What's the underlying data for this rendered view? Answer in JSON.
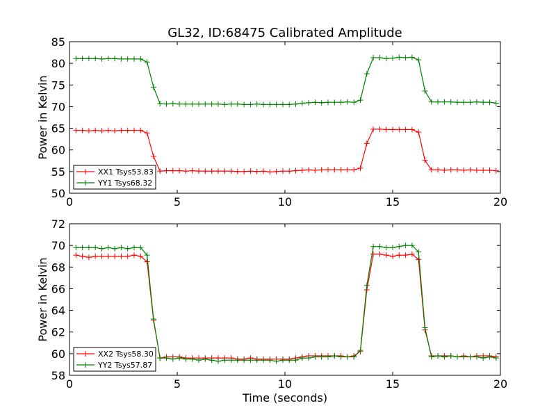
{
  "chart_data": [
    {
      "type": "line",
      "title": "GL32, ID:68475 Calibrated Amplitude",
      "xlabel": "",
      "ylabel": "Power in Kelvin",
      "xlim": [
        0,
        20
      ],
      "ylim": [
        50,
        85
      ],
      "xticks": [
        "0",
        "5",
        "10",
        "15",
        "20"
      ],
      "yticks": [
        "50",
        "55",
        "60",
        "65",
        "70",
        "75",
        "80",
        "85"
      ],
      "legend_position": "lower-left",
      "grid": false,
      "x": [
        0.3,
        0.6,
        0.9,
        1.2,
        1.5,
        1.8,
        2.1,
        2.4,
        2.7,
        3.0,
        3.3,
        3.6,
        3.9,
        4.2,
        4.5,
        4.8,
        5.1,
        5.4,
        5.7,
        6.0,
        6.3,
        6.6,
        6.9,
        7.2,
        7.5,
        7.8,
        8.1,
        8.4,
        8.7,
        9.0,
        9.3,
        9.6,
        9.9,
        10.2,
        10.5,
        10.8,
        11.1,
        11.4,
        11.7,
        12.0,
        12.3,
        12.6,
        12.9,
        13.2,
        13.5,
        13.8,
        14.1,
        14.4,
        14.7,
        15.0,
        15.3,
        15.6,
        15.9,
        16.2,
        16.5,
        16.8,
        17.1,
        17.4,
        17.7,
        18.0,
        18.3,
        18.6,
        18.9,
        19.2,
        19.5,
        19.8
      ],
      "series": [
        {
          "name": "XX1 Tsys53.83",
          "color": "#ff0000",
          "values": [
            64.5,
            64.5,
            64.4,
            64.5,
            64.4,
            64.5,
            64.4,
            64.5,
            64.5,
            64.5,
            64.5,
            63.9,
            58.5,
            55.1,
            55.2,
            55.2,
            55.2,
            55.1,
            55.2,
            55.1,
            55.1,
            55.1,
            55.1,
            55.1,
            55.1,
            55.0,
            55.0,
            55.1,
            55.0,
            55.1,
            54.9,
            55.0,
            55.1,
            55.1,
            55.2,
            55.3,
            55.4,
            55.3,
            55.4,
            55.4,
            55.4,
            55.4,
            55.4,
            55.4,
            55.8,
            61.5,
            64.8,
            64.8,
            64.7,
            64.7,
            64.7,
            64.7,
            64.7,
            64.1,
            57.6,
            55.4,
            55.4,
            55.3,
            55.4,
            55.4,
            55.3,
            55.4,
            55.3,
            55.3,
            55.3,
            55.2
          ]
        },
        {
          "name": "YY1 Tsys68.32",
          "color": "#008000",
          "values": [
            81.1,
            81.1,
            81.1,
            81.1,
            81.0,
            81.1,
            81.1,
            81.0,
            81.0,
            81.0,
            81.0,
            80.3,
            74.5,
            70.7,
            70.6,
            70.7,
            70.6,
            70.6,
            70.6,
            70.6,
            70.6,
            70.6,
            70.6,
            70.5,
            70.6,
            70.6,
            70.5,
            70.5,
            70.6,
            70.5,
            70.5,
            70.5,
            70.5,
            70.5,
            70.6,
            70.8,
            70.9,
            71.0,
            70.9,
            71.0,
            71.0,
            71.0,
            71.1,
            71.0,
            71.5,
            77.6,
            81.3,
            81.3,
            81.1,
            81.2,
            81.4,
            81.3,
            81.4,
            80.8,
            73.6,
            71.1,
            71.1,
            71.1,
            71.1,
            71.0,
            71.0,
            71.0,
            71.1,
            71.0,
            71.0,
            70.8
          ]
        }
      ]
    },
    {
      "type": "line",
      "title": "",
      "xlabel": "Time (seconds)",
      "ylabel": "Power in Kelvin",
      "xlim": [
        0,
        20
      ],
      "ylim": [
        58,
        72
      ],
      "xticks": [
        "0",
        "5",
        "10",
        "15",
        "20"
      ],
      "yticks": [
        "58",
        "60",
        "62",
        "64",
        "66",
        "68",
        "70",
        "72"
      ],
      "legend_position": "lower-left",
      "grid": false,
      "x": [
        0.3,
        0.6,
        0.9,
        1.2,
        1.5,
        1.8,
        2.1,
        2.4,
        2.7,
        3.0,
        3.3,
        3.6,
        3.9,
        4.2,
        4.5,
        4.8,
        5.1,
        5.4,
        5.7,
        6.0,
        6.3,
        6.6,
        6.9,
        7.2,
        7.5,
        7.8,
        8.1,
        8.4,
        8.7,
        9.0,
        9.3,
        9.6,
        9.9,
        10.2,
        10.5,
        10.8,
        11.1,
        11.4,
        11.7,
        12.0,
        12.3,
        12.6,
        12.9,
        13.2,
        13.5,
        13.8,
        14.1,
        14.4,
        14.7,
        15.0,
        15.3,
        15.6,
        15.9,
        16.2,
        16.5,
        16.8,
        17.1,
        17.4,
        17.7,
        18.0,
        18.3,
        18.6,
        18.9,
        19.2,
        19.5,
        19.8
      ],
      "series": [
        {
          "name": "XX2 Tsys58.30",
          "color": "#ff0000",
          "values": [
            69.1,
            69.0,
            68.9,
            69.0,
            69.0,
            69.0,
            69.0,
            69.0,
            69.0,
            69.1,
            69.0,
            68.5,
            63.1,
            59.6,
            59.7,
            59.7,
            59.7,
            59.6,
            59.6,
            59.6,
            59.6,
            59.6,
            59.6,
            59.6,
            59.6,
            59.5,
            59.5,
            59.6,
            59.5,
            59.5,
            59.5,
            59.5,
            59.5,
            59.5,
            59.6,
            59.7,
            59.8,
            59.8,
            59.8,
            59.8,
            59.8,
            59.8,
            59.7,
            59.8,
            60.2,
            65.9,
            69.2,
            69.2,
            69.1,
            69.0,
            69.1,
            69.1,
            69.2,
            68.7,
            62.2,
            59.8,
            59.8,
            59.8,
            59.8,
            59.7,
            59.8,
            59.7,
            59.8,
            59.8,
            59.8,
            59.7
          ]
        },
        {
          "name": "YY2 Tsys57.87",
          "color": "#008000",
          "values": [
            69.8,
            69.8,
            69.8,
            69.8,
            69.7,
            69.8,
            69.7,
            69.8,
            69.7,
            69.8,
            69.8,
            69.1,
            63.2,
            59.6,
            59.6,
            59.5,
            59.6,
            59.5,
            59.5,
            59.4,
            59.5,
            59.4,
            59.3,
            59.4,
            59.4,
            59.4,
            59.4,
            59.4,
            59.4,
            59.4,
            59.4,
            59.3,
            59.4,
            59.4,
            59.4,
            59.6,
            59.6,
            59.7,
            59.7,
            59.7,
            59.8,
            59.7,
            59.7,
            59.7,
            60.3,
            66.3,
            69.9,
            69.9,
            69.8,
            69.8,
            69.9,
            70.0,
            70.0,
            69.4,
            62.4,
            59.7,
            59.8,
            59.7,
            59.8,
            59.7,
            59.7,
            59.7,
            59.7,
            59.6,
            59.7,
            59.6
          ]
        }
      ]
    }
  ]
}
